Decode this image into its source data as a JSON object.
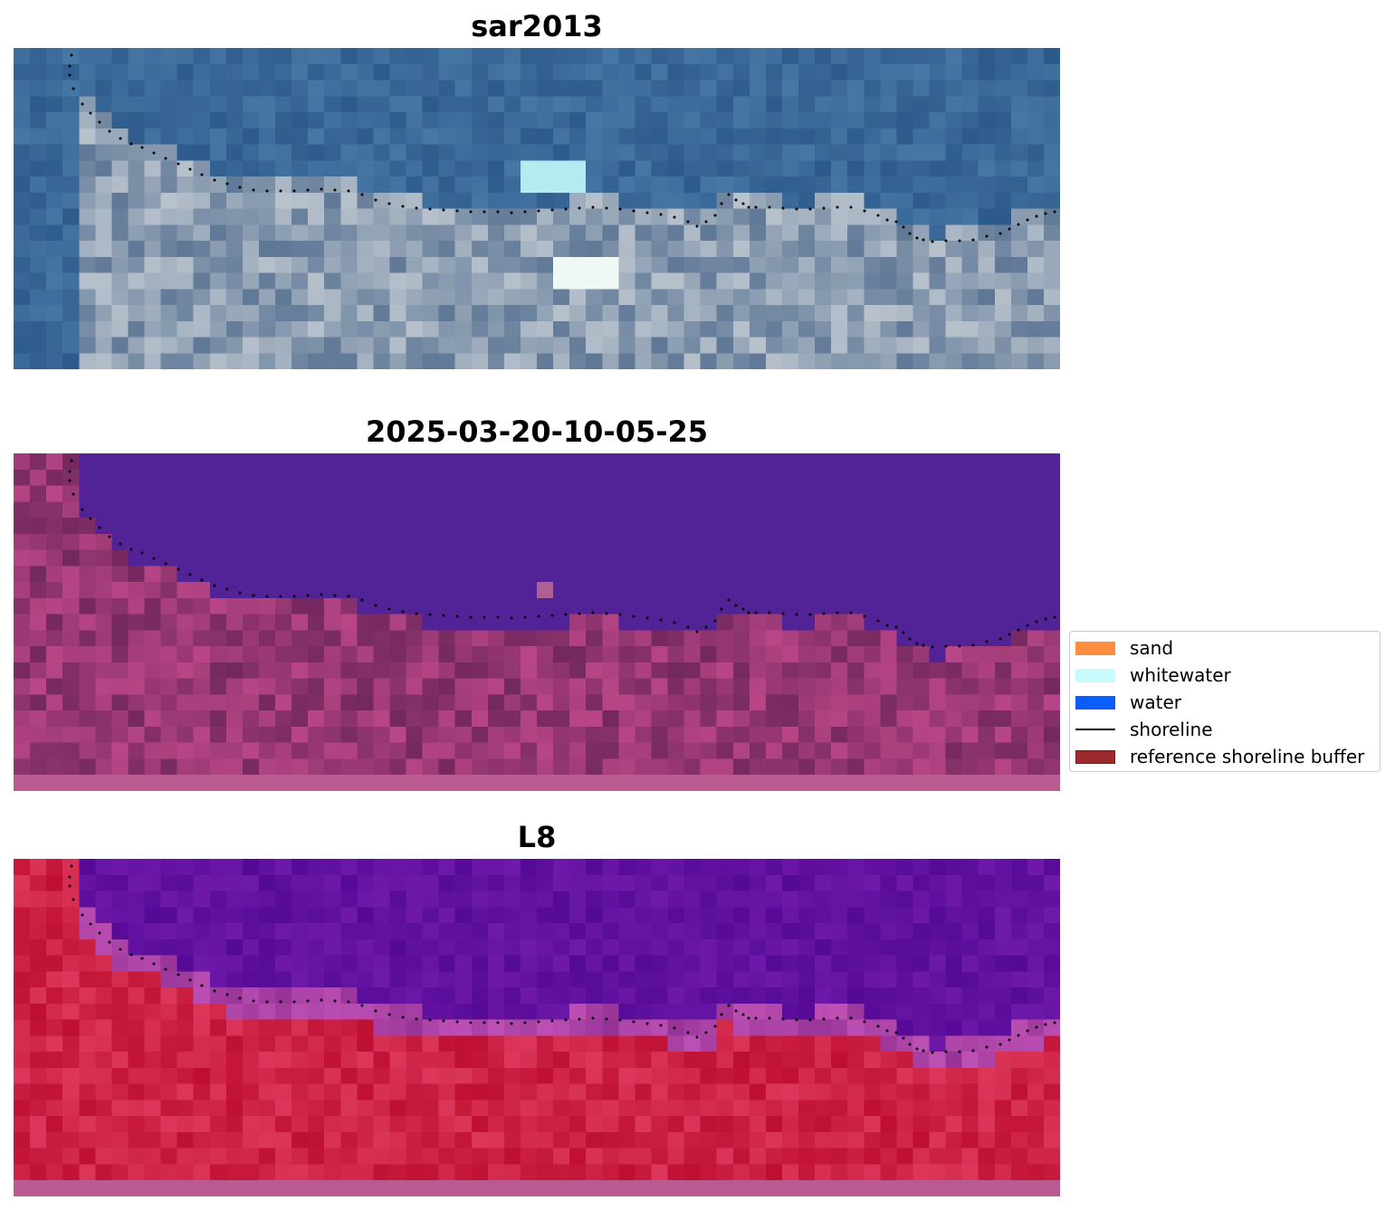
{
  "chart_data": [
    {
      "type": "image",
      "title": "sar2013",
      "colormap": "blue-grey RGB composite",
      "shoreline_style": "dotted",
      "shoreline_color": "#000000"
    },
    {
      "type": "image",
      "title": "2025-03-20-10-05-25",
      "colormap": "classified (purple water / magenta land)",
      "shoreline_style": "dotted",
      "shoreline_color": "#000000"
    },
    {
      "type": "image",
      "title": "L8",
      "colormap": "false-color (violet water / red land)",
      "shoreline_style": "dotted",
      "shoreline_color": "#000000"
    }
  ],
  "legend": {
    "placement": "right",
    "items": [
      {
        "label": "sand",
        "kind": "patch",
        "color": "#ff8c3f"
      },
      {
        "label": "whitewater",
        "kind": "patch",
        "color": "#c8fcfc"
      },
      {
        "label": "water",
        "kind": "patch",
        "color": "#0a5eff"
      },
      {
        "label": "shoreline",
        "kind": "line",
        "color": "#000000"
      },
      {
        "label": "reference shoreline buffer",
        "kind": "patch",
        "color": "#9b2a2a"
      }
    ]
  }
}
